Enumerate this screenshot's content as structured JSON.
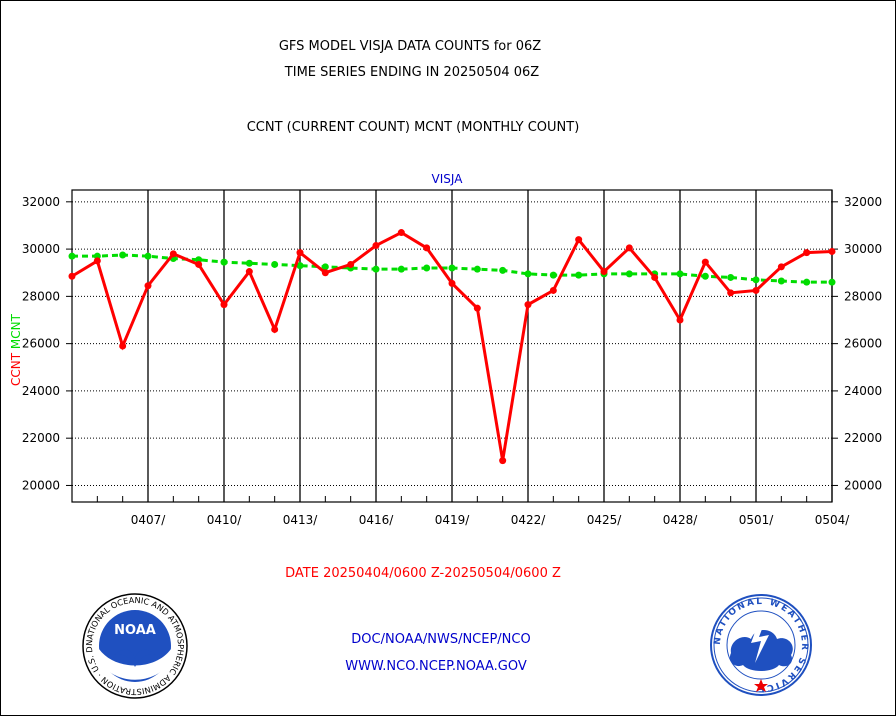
{
  "header": {
    "title_line1": "GFS MODEL VISJA DATA COUNTS for 06Z",
    "title_line2": "TIME SERIES ENDING IN 20250504 06Z",
    "subtitle": "CCNT (CURRENT COUNT) MCNT (MONTHLY COUNT)"
  },
  "footer": {
    "date_range": "DATE 20250404/0600 Z-20250504/0600 Z",
    "link1": "DOC/NOAA/NWS/NCEP/NCO",
    "link2": "WWW.NCO.NCEP.NOAA.GOV",
    "noaa_logo_text": "NOAA",
    "noaa_ring_text": "NATIONAL OCEANIC AND ATMOSPHERIC ADMINISTRATION · U.S. DEPARTMENT OF COMMERCE",
    "nws_ring_text": "NATIONAL WEATHER SERVICE"
  },
  "colors": {
    "ccnt": "#ff0000",
    "mcnt": "#00dd00",
    "title_blue": "#0000cc",
    "grid": "#000000"
  },
  "chart_data": {
    "type": "line",
    "title": "VISJA",
    "ylabel_ccnt": "CCNT",
    "ylabel_mcnt": "MCNT",
    "ylim": [
      19300,
      32500
    ],
    "yticks": [
      20000,
      22000,
      24000,
      26000,
      28000,
      30000,
      32000
    ],
    "x_tick_labels": [
      "0407/",
      "0410/",
      "0413/",
      "0416/",
      "0419/",
      "0422/",
      "0425/",
      "0428/",
      "0501/",
      "0504/"
    ],
    "x_tick_day_offsets": [
      3,
      6,
      9,
      12,
      15,
      18,
      21,
      24,
      27,
      30
    ],
    "x_range_days": [
      0,
      30
    ],
    "grid": true,
    "series": [
      {
        "name": "CCNT",
        "day_offsets": [
          0,
          1,
          2,
          3,
          4,
          5,
          6,
          7,
          8,
          9,
          10,
          11,
          12,
          13,
          14,
          15,
          16,
          17,
          18,
          19,
          20,
          21,
          22,
          23,
          24,
          25,
          26,
          27,
          28,
          29,
          30
        ],
        "values": [
          28850,
          29500,
          25900,
          28450,
          29800,
          29350,
          27650,
          29050,
          26600,
          29850,
          29000,
          29350,
          30150,
          30700,
          30050,
          28550,
          27500,
          21050,
          27650,
          28250,
          30400,
          29050,
          30050,
          28800,
          27000,
          29450,
          28150,
          28250,
          29250,
          29850,
          29900
        ]
      },
      {
        "name": "MCNT",
        "day_offsets": [
          0,
          1,
          2,
          3,
          4,
          5,
          6,
          7,
          8,
          9,
          10,
          11,
          12,
          13,
          14,
          15,
          16,
          17,
          18,
          19,
          20,
          21,
          22,
          23,
          24,
          25,
          26,
          27,
          28,
          29,
          30
        ],
        "values": [
          29700,
          29700,
          29750,
          29700,
          29600,
          29550,
          29450,
          29400,
          29350,
          29300,
          29250,
          29200,
          29150,
          29150,
          29200,
          29200,
          29150,
          29100,
          28950,
          28900,
          28900,
          28950,
          28950,
          28950,
          28950,
          28850,
          28800,
          28700,
          28650,
          28600,
          28600
        ]
      }
    ]
  }
}
